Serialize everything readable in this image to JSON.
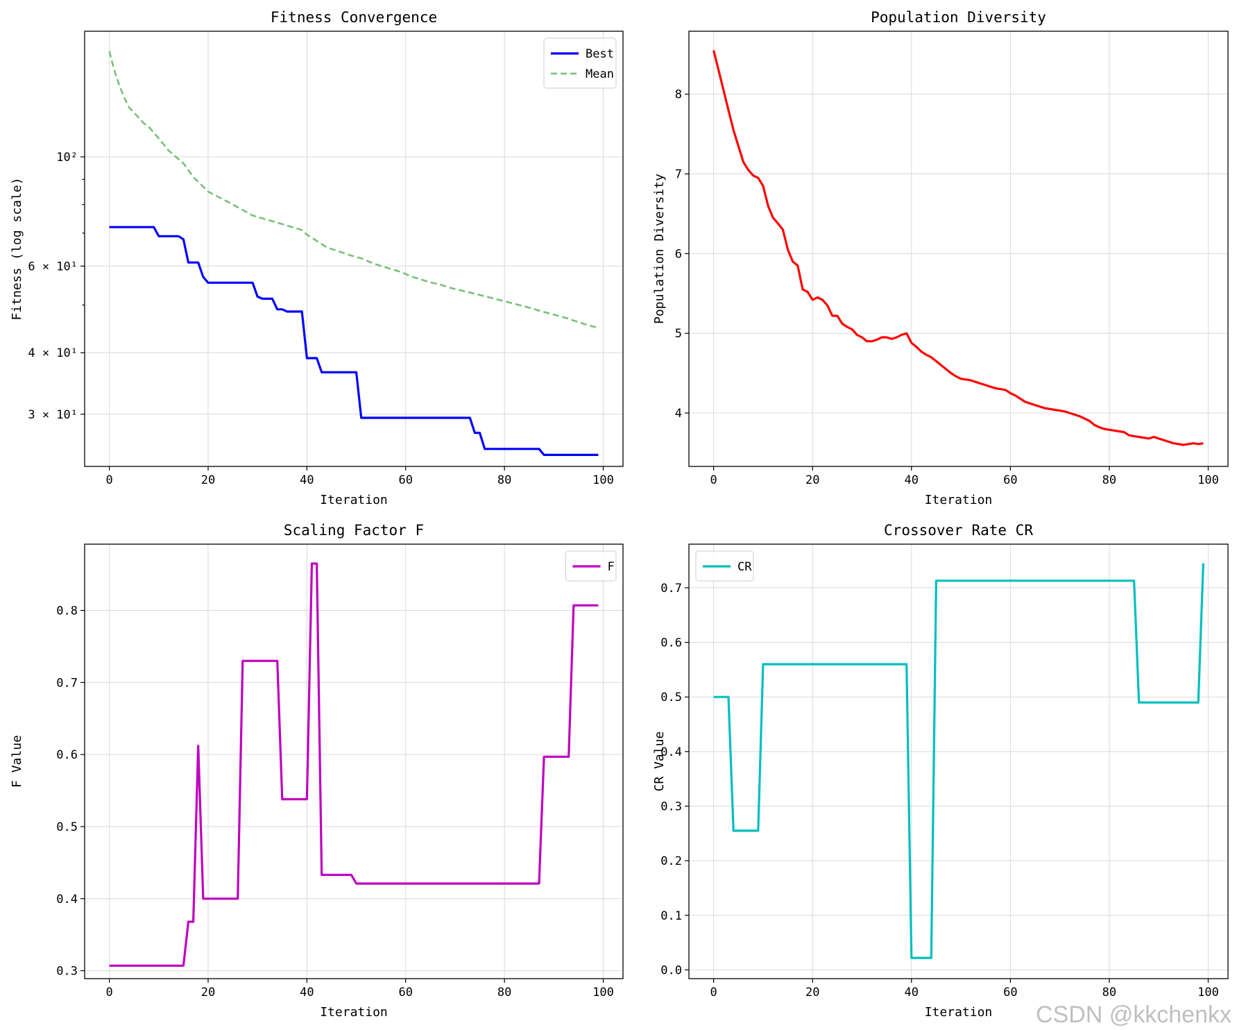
{
  "watermark": "CSDN @kkchenkx",
  "chart_data": [
    {
      "id": "fitness",
      "type": "line",
      "title": "Fitness Convergence",
      "xlabel": "Iteration",
      "ylabel": "Fitness (log scale)",
      "yscale": "log",
      "xlim": [
        -5,
        104
      ],
      "ylim": [
        23.5,
        180
      ],
      "xticks": [
        0,
        20,
        40,
        60,
        80,
        100
      ],
      "yticks": [
        {
          "v": 100,
          "label": "10²"
        },
        {
          "v": 60,
          "label": "6 × 10¹"
        },
        {
          "v": 40,
          "label": "4 × 10¹"
        },
        {
          "v": 30,
          "label": "3 × 10¹"
        }
      ],
      "yminor": [
        50,
        70,
        80,
        90
      ],
      "grid": true,
      "legend": {
        "position": "upper-right",
        "entries": [
          "Best",
          "Mean"
        ]
      },
      "series": [
        {
          "name": "Best",
          "color": "#0000ff",
          "style": "solid",
          "width": 3.2,
          "x": [
            0,
            9,
            10,
            14,
            15,
            16,
            18,
            19,
            20,
            29,
            30,
            31,
            33,
            34,
            35,
            36,
            39,
            40,
            42,
            43,
            50,
            51,
            73,
            74,
            75,
            76,
            87,
            88,
            99
          ],
          "y": [
            72,
            72,
            69,
            69,
            68,
            61,
            61,
            57,
            55.5,
            55.5,
            52,
            51.5,
            51.5,
            49,
            49,
            48.5,
            48.5,
            39,
            39,
            36.5,
            36.5,
            29.5,
            29.5,
            27.5,
            27.5,
            25.5,
            25.5,
            24.8,
            24.8
          ]
        },
        {
          "name": "Mean",
          "color": "#77c077",
          "style": "dashed",
          "width": 2.6,
          "x": [
            0,
            1,
            2,
            3,
            4,
            5,
            6,
            7,
            8,
            9,
            10,
            11,
            12,
            13,
            14,
            15,
            16,
            17,
            18,
            19,
            20,
            21,
            22,
            23,
            24,
            25,
            26,
            27,
            28,
            29,
            30,
            31,
            32,
            33,
            34,
            35,
            36,
            37,
            38,
            39,
            40,
            41,
            42,
            43,
            44,
            45,
            46,
            47,
            48,
            49,
            50,
            51,
            52,
            53,
            54,
            55,
            56,
            57,
            58,
            59,
            60,
            61,
            62,
            63,
            64,
            65,
            66,
            67,
            68,
            69,
            70,
            71,
            72,
            73,
            74,
            75,
            76,
            77,
            78,
            79,
            80,
            81,
            82,
            83,
            84,
            85,
            86,
            87,
            88,
            89,
            90,
            91,
            92,
            93,
            94,
            95,
            96,
            97,
            98,
            99
          ],
          "y": [
            164,
            150,
            140,
            132,
            126,
            123,
            120,
            117,
            115,
            112,
            109,
            106,
            103,
            101,
            99,
            97,
            94,
            91,
            89,
            87,
            85,
            84,
            83,
            82,
            81,
            80,
            79,
            78,
            77,
            76,
            75.5,
            75,
            74.5,
            74,
            73.5,
            73,
            72.5,
            72,
            71.5,
            71,
            69.5,
            68.5,
            67.5,
            66.5,
            65.5,
            65,
            64.5,
            64,
            63.5,
            63,
            62.6,
            62.2,
            61.6,
            61,
            60.5,
            60,
            59.6,
            59.2,
            58.8,
            58.4,
            57.8,
            57.2,
            56.8,
            56.4,
            56,
            55.6,
            55.3,
            55,
            54.6,
            54.2,
            53.9,
            53.6,
            53.3,
            53,
            52.7,
            52.4,
            52.1,
            51.8,
            51.5,
            51.2,
            50.9,
            50.6,
            50.3,
            50,
            49.7,
            49.4,
            49.1,
            48.7,
            48.4,
            48.1,
            47.8,
            47.5,
            47.2,
            46.9,
            46.5,
            46.2,
            45.8,
            45.5,
            45.2,
            45
          ]
        }
      ]
    },
    {
      "id": "diversity",
      "type": "line",
      "title": "Population Diversity",
      "xlabel": "Iteration",
      "ylabel": "Population Diversity",
      "yscale": "linear",
      "xlim": [
        -5,
        104
      ],
      "ylim": [
        3.33,
        8.79
      ],
      "xticks": [
        0,
        20,
        40,
        60,
        80,
        100
      ],
      "yticks": [
        {
          "v": 4,
          "label": "4"
        },
        {
          "v": 5,
          "label": "5"
        },
        {
          "v": 6,
          "label": "6"
        },
        {
          "v": 7,
          "label": "7"
        },
        {
          "v": 8,
          "label": "8"
        }
      ],
      "grid": true,
      "series": [
        {
          "name": "Diversity",
          "color": "#ff0000",
          "style": "solid",
          "width": 3.2,
          "x": [
            0,
            1,
            2,
            3,
            4,
            5,
            6,
            7,
            8,
            9,
            10,
            11,
            12,
            13,
            14,
            15,
            16,
            17,
            18,
            19,
            20,
            21,
            22,
            23,
            24,
            25,
            26,
            27,
            28,
            29,
            30,
            31,
            32,
            33,
            34,
            35,
            36,
            37,
            38,
            39,
            40,
            41,
            42,
            43,
            44,
            45,
            46,
            47,
            48,
            49,
            50,
            51,
            52,
            53,
            54,
            55,
            56,
            57,
            58,
            59,
            60,
            61,
            62,
            63,
            64,
            65,
            66,
            67,
            68,
            69,
            70,
            71,
            72,
            73,
            74,
            75,
            76,
            77,
            78,
            79,
            80,
            81,
            82,
            83,
            84,
            85,
            86,
            87,
            88,
            89,
            90,
            91,
            92,
            93,
            94,
            95,
            96,
            97,
            98,
            99
          ],
          "y": [
            8.55,
            8.3,
            8.05,
            7.8,
            7.55,
            7.35,
            7.15,
            7.05,
            6.98,
            6.95,
            6.85,
            6.6,
            6.45,
            6.38,
            6.3,
            6.05,
            5.9,
            5.85,
            5.55,
            5.52,
            5.42,
            5.45,
            5.42,
            5.35,
            5.22,
            5.22,
            5.12,
            5.08,
            5.05,
            4.98,
            4.95,
            4.9,
            4.9,
            4.92,
            4.95,
            4.95,
            4.93,
            4.95,
            4.98,
            5.0,
            4.88,
            4.83,
            4.77,
            4.73,
            4.7,
            4.65,
            4.6,
            4.55,
            4.5,
            4.46,
            4.43,
            4.42,
            4.41,
            4.39,
            4.37,
            4.35,
            4.33,
            4.31,
            4.3,
            4.29,
            4.25,
            4.22,
            4.18,
            4.14,
            4.12,
            4.1,
            4.08,
            4.06,
            4.05,
            4.04,
            4.03,
            4.02,
            4.0,
            3.98,
            3.96,
            3.93,
            3.9,
            3.85,
            3.82,
            3.8,
            3.79,
            3.78,
            3.77,
            3.76,
            3.72,
            3.71,
            3.7,
            3.69,
            3.68,
            3.7,
            3.68,
            3.66,
            3.64,
            3.62,
            3.61,
            3.6,
            3.61,
            3.62,
            3.61,
            3.62
          ]
        }
      ]
    },
    {
      "id": "scaling",
      "type": "line",
      "title": "Scaling Factor F",
      "xlabel": "Iteration",
      "ylabel": "F Value",
      "yscale": "linear",
      "xlim": [
        -5,
        104
      ],
      "ylim": [
        0.289,
        0.892
      ],
      "xticks": [
        0,
        20,
        40,
        60,
        80,
        100
      ],
      "yticks": [
        {
          "v": 0.3,
          "label": "0.3"
        },
        {
          "v": 0.4,
          "label": "0.4"
        },
        {
          "v": 0.5,
          "label": "0.5"
        },
        {
          "v": 0.6,
          "label": "0.6"
        },
        {
          "v": 0.7,
          "label": "0.7"
        },
        {
          "v": 0.8,
          "label": "0.8"
        }
      ],
      "grid": true,
      "legend": {
        "position": "upper-right",
        "entries": [
          "F"
        ]
      },
      "series": [
        {
          "name": "F",
          "color": "#bf00bf",
          "style": "solid",
          "width": 3.2,
          "x": [
            0,
            15,
            16,
            17,
            18,
            19,
            26,
            27,
            34,
            35,
            40,
            41,
            42,
            43,
            49,
            50,
            87,
            88,
            93,
            94,
            99
          ],
          "y": [
            0.307,
            0.307,
            0.368,
            0.368,
            0.612,
            0.4,
            0.4,
            0.73,
            0.73,
            0.538,
            0.538,
            0.865,
            0.865,
            0.433,
            0.433,
            0.421,
            0.421,
            0.597,
            0.597,
            0.807,
            0.807
          ]
        }
      ]
    },
    {
      "id": "crossover",
      "type": "line",
      "title": "Crossover Rate CR",
      "xlabel": "Iteration",
      "ylabel": "CR Value",
      "yscale": "linear",
      "xlim": [
        -5,
        104
      ],
      "ylim": [
        -0.016,
        0.78
      ],
      "xticks": [
        0,
        20,
        40,
        60,
        80,
        100
      ],
      "yticks": [
        {
          "v": 0.0,
          "label": "0.0"
        },
        {
          "v": 0.1,
          "label": "0.1"
        },
        {
          "v": 0.2,
          "label": "0.2"
        },
        {
          "v": 0.3,
          "label": "0.3"
        },
        {
          "v": 0.4,
          "label": "0.4"
        },
        {
          "v": 0.5,
          "label": "0.5"
        },
        {
          "v": 0.6,
          "label": "0.6"
        },
        {
          "v": 0.7,
          "label": "0.7"
        }
      ],
      "grid": true,
      "legend": {
        "position": "upper-left",
        "entries": [
          "CR"
        ]
      },
      "series": [
        {
          "name": "CR",
          "color": "#00bfbf",
          "style": "solid",
          "width": 3.2,
          "x": [
            0,
            3,
            4,
            9,
            10,
            39,
            40,
            44,
            45,
            85,
            86,
            98,
            99
          ],
          "y": [
            0.5,
            0.5,
            0.255,
            0.255,
            0.56,
            0.56,
            0.022,
            0.022,
            0.713,
            0.713,
            0.49,
            0.49,
            0.745
          ]
        }
      ]
    }
  ]
}
